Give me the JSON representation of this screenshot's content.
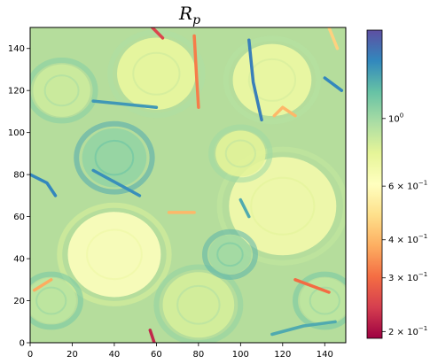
{
  "chart_data": {
    "type": "heatmap",
    "title": {
      "main": "R",
      "sub": "p"
    },
    "xlabel": "",
    "ylabel": "",
    "xlim": [
      0,
      150
    ],
    "ylim": [
      0,
      150
    ],
    "x_ticks": [
      "0",
      "20",
      "40",
      "60",
      "80",
      "100",
      "120",
      "140"
    ],
    "y_ticks": [
      "0",
      "20",
      "40",
      "60",
      "80",
      "100",
      "120",
      "140"
    ],
    "colorbar": {
      "scale": "log",
      "cmap": "Spectral",
      "range": [
        0.19,
        1.95
      ],
      "ticks": [
        {
          "value": 1.0,
          "base": "10",
          "exp": "0"
        },
        {
          "value": 0.6,
          "base": "6 × 10",
          "exp": "−1"
        },
        {
          "value": 0.4,
          "base": "4 × 10",
          "exp": "−1"
        },
        {
          "value": 0.3,
          "base": "3 × 10",
          "exp": "−1"
        },
        {
          "value": 0.2,
          "base": "2 × 10",
          "exp": "−1"
        }
      ]
    },
    "colors": [
      "#9e0142",
      "#d53e4f",
      "#f46d43",
      "#fdae61",
      "#fee08b",
      "#ffffbf",
      "#e6f598",
      "#abdda4",
      "#66c2a5",
      "#3288bd",
      "#5e4fa2"
    ],
    "vortices": [
      {
        "x": 40,
        "y": 42,
        "r": 26,
        "value": 0.62
      },
      {
        "x": 120,
        "y": 65,
        "r": 30,
        "value": 0.68
      },
      {
        "x": 115,
        "y": 125,
        "r": 22,
        "value": 0.72
      },
      {
        "x": 60,
        "y": 128,
        "r": 22,
        "value": 0.74
      },
      {
        "x": 15,
        "y": 120,
        "r": 16,
        "value": 0.85
      },
      {
        "x": 100,
        "y": 90,
        "r": 14,
        "value": 0.78
      },
      {
        "x": 40,
        "y": 88,
        "r": 18,
        "value": 1.05
      },
      {
        "x": 80,
        "y": 18,
        "r": 20,
        "value": 0.82
      },
      {
        "x": 10,
        "y": 20,
        "r": 14,
        "value": 0.9
      },
      {
        "x": 140,
        "y": 20,
        "r": 14,
        "value": 0.9
      },
      {
        "x": 95,
        "y": 42,
        "r": 12,
        "value": 1.0
      }
    ],
    "filaments": [
      {
        "points": [
          [
            57,
            6
          ],
          [
            59,
            0
          ]
        ],
        "value": 0.22
      },
      {
        "points": [
          [
            58,
            150
          ],
          [
            63,
            145
          ]
        ],
        "value": 0.25
      },
      {
        "points": [
          [
            78,
            146
          ],
          [
            79,
            128
          ],
          [
            80,
            112
          ]
        ],
        "value": 0.32
      },
      {
        "points": [
          [
            104,
            144
          ],
          [
            106,
            124
          ],
          [
            110,
            106
          ]
        ],
        "value": 1.6
      },
      {
        "points": [
          [
            126,
            30
          ],
          [
            142,
            24
          ]
        ],
        "value": 0.3
      },
      {
        "points": [
          [
            0,
            80
          ],
          [
            8,
            76
          ],
          [
            12,
            70
          ]
        ],
        "value": 1.55
      },
      {
        "points": [
          [
            30,
            115
          ],
          [
            60,
            112
          ]
        ],
        "value": 1.45
      },
      {
        "points": [
          [
            30,
            82
          ],
          [
            52,
            70
          ]
        ],
        "value": 1.5
      },
      {
        "points": [
          [
            115,
            4
          ],
          [
            130,
            8
          ],
          [
            145,
            10
          ]
        ],
        "value": 1.35
      },
      {
        "points": [
          [
            2,
            25
          ],
          [
            10,
            30
          ]
        ],
        "value": 0.38
      },
      {
        "points": [
          [
            116,
            108
          ],
          [
            120,
            112
          ],
          [
            126,
            108
          ]
        ],
        "value": 0.4
      },
      {
        "points": [
          [
            66,
            62
          ],
          [
            78,
            62
          ]
        ],
        "value": 0.4
      },
      {
        "points": [
          [
            140,
            126
          ],
          [
            148,
            120
          ]
        ],
        "value": 1.55
      },
      {
        "points": [
          [
            100,
            68
          ],
          [
            104,
            60
          ]
        ],
        "value": 1.35
      },
      {
        "points": [
          [
            142,
            150
          ],
          [
            146,
            140
          ]
        ],
        "value": 0.45
      }
    ]
  }
}
